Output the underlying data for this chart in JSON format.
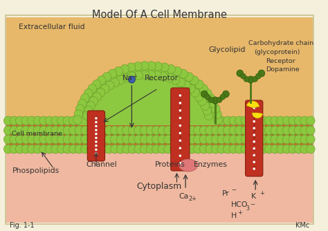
{
  "title": "Model Of A Cell Membrane",
  "bg_outer": "#f5f0dc",
  "bg_extracellular": "#e8b86a",
  "bg_cytoplasm": "#f0b8a0",
  "membrane_brown": "#c07830",
  "membrane_tan": "#d4905a",
  "membrane_green": "#8cc840",
  "membrane_green_dark": "#5a8820",
  "protein_red": "#c03020",
  "protein_dark_red": "#802010",
  "yellow_highlight": "#f8e010",
  "blue_dot": "#4060b0",
  "glycolipid_green": "#4a7818",
  "text_color": "#333333",
  "fig_label": "Fig. 1-1",
  "fig_credit": "KMc",
  "extracellular_label": "Extracellular fluid",
  "cytoplasm_label": "Cytoplasm",
  "cell_membrane_label": "Cell membrane",
  "border_color": "#c8c090"
}
